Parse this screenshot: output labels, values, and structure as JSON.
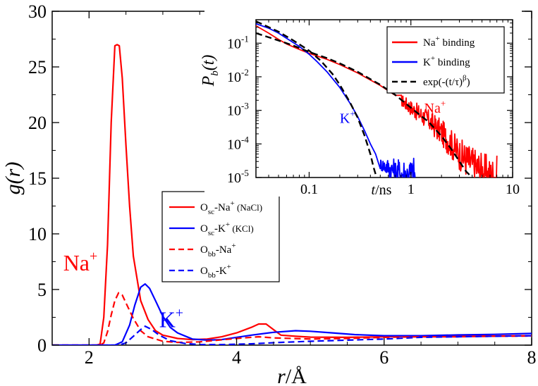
{
  "chart_data": [
    {
      "type": "line",
      "xlabel_italic": "r",
      "xlabel_unit": "/Å",
      "ylabel_italic": "g(r)",
      "xlim": [
        1.5,
        8
      ],
      "ylim": [
        0,
        30
      ],
      "xticks": [
        2,
        4,
        6,
        8
      ],
      "xtick_labels": [
        "2",
        "4",
        "6",
        "8"
      ],
      "yticks": [
        0,
        5,
        10,
        15,
        20,
        25,
        30
      ],
      "ytick_labels": [
        "0",
        "5",
        "10",
        "15",
        "20",
        "25",
        "30"
      ],
      "grid": false,
      "legend_position": "center-right",
      "annotations": [
        {
          "text": "Na",
          "sup": "+",
          "color": "#ff0000",
          "x": 1.65,
          "y": 6.7
        },
        {
          "text": "K",
          "sup": "+",
          "color": "#0000ff",
          "x": 2.95,
          "y": 1.6
        }
      ],
      "series": [
        {
          "name_parts": [
            "O",
            "sc",
            "-Na",
            "+",
            " (NaCl)"
          ],
          "color": "#ff0000",
          "dash": "solid",
          "points": [
            [
              1.5,
              0
            ],
            [
              2.1,
              0
            ],
            [
              2.15,
              0.1
            ],
            [
              2.2,
              2.5
            ],
            [
              2.25,
              9
            ],
            [
              2.3,
              20
            ],
            [
              2.35,
              26.9
            ],
            [
              2.38,
              27
            ],
            [
              2.41,
              26.9
            ],
            [
              2.45,
              24
            ],
            [
              2.5,
              18
            ],
            [
              2.55,
              12.5
            ],
            [
              2.6,
              8
            ],
            [
              2.7,
              4
            ],
            [
              2.8,
              2.3
            ],
            [
              2.9,
              1.3
            ],
            [
              3.0,
              0.9
            ],
            [
              3.2,
              0.6
            ],
            [
              3.4,
              0.5
            ],
            [
              3.6,
              0.55
            ],
            [
              3.8,
              0.75
            ],
            [
              4.0,
              1.1
            ],
            [
              4.2,
              1.6
            ],
            [
              4.3,
              1.9
            ],
            [
              4.4,
              1.9
            ],
            [
              4.5,
              1.4
            ],
            [
              4.6,
              0.9
            ],
            [
              4.8,
              0.8
            ],
            [
              5.0,
              0.72
            ],
            [
              5.5,
              0.7
            ],
            [
              6.0,
              0.75
            ],
            [
              6.5,
              0.82
            ],
            [
              7.0,
              0.8
            ],
            [
              7.5,
              0.82
            ],
            [
              8.0,
              0.85
            ]
          ]
        },
        {
          "name_parts": [
            "O",
            "sc",
            "-K",
            "+",
            " (KCl)"
          ],
          "color": "#0000ff",
          "dash": "solid",
          "points": [
            [
              1.5,
              0
            ],
            [
              2.35,
              0
            ],
            [
              2.45,
              0.3
            ],
            [
              2.55,
              1.8
            ],
            [
              2.62,
              3.6
            ],
            [
              2.7,
              5.2
            ],
            [
              2.76,
              5.5
            ],
            [
              2.82,
              5.1
            ],
            [
              2.9,
              4.0
            ],
            [
              3.0,
              2.6
            ],
            [
              3.1,
              1.6
            ],
            [
              3.2,
              1.1
            ],
            [
              3.4,
              0.55
            ],
            [
              3.6,
              0.45
            ],
            [
              3.8,
              0.5
            ],
            [
              4.0,
              0.7
            ],
            [
              4.2,
              0.9
            ],
            [
              4.5,
              1.15
            ],
            [
              4.8,
              1.3
            ],
            [
              5.0,
              1.25
            ],
            [
              5.3,
              1.1
            ],
            [
              5.6,
              0.95
            ],
            [
              6.0,
              0.85
            ],
            [
              6.5,
              0.85
            ],
            [
              7.0,
              0.92
            ],
            [
              7.5,
              0.97
            ],
            [
              8.0,
              1.05
            ]
          ]
        },
        {
          "name_parts": [
            "O",
            "bb",
            "-Na",
            "+",
            ""
          ],
          "color": "#ff0000",
          "dash": "dashed",
          "points": [
            [
              1.5,
              0
            ],
            [
              2.15,
              0
            ],
            [
              2.2,
              0.2
            ],
            [
              2.25,
              1.2
            ],
            [
              2.3,
              2.7
            ],
            [
              2.35,
              4.0
            ],
            [
              2.4,
              4.7
            ],
            [
              2.45,
              4.5
            ],
            [
              2.5,
              3.8
            ],
            [
              2.6,
              2.4
            ],
            [
              2.7,
              1.3
            ],
            [
              2.8,
              0.75
            ],
            [
              3.0,
              0.35
            ],
            [
              3.2,
              0.25
            ],
            [
              3.5,
              0.3
            ],
            [
              4.0,
              0.6
            ],
            [
              4.3,
              0.75
            ],
            [
              4.5,
              0.65
            ],
            [
              5.0,
              0.55
            ],
            [
              5.5,
              0.6
            ],
            [
              6.0,
              0.7
            ],
            [
              6.5,
              0.75
            ],
            [
              7.0,
              0.75
            ],
            [
              7.5,
              0.8
            ],
            [
              8.0,
              0.82
            ]
          ]
        },
        {
          "name_parts": [
            "O",
            "bb",
            "-K",
            "+",
            ""
          ],
          "color": "#0000ff",
          "dash": "dashed",
          "points": [
            [
              1.5,
              0
            ],
            [
              2.4,
              0
            ],
            [
              2.5,
              0.2
            ],
            [
              2.6,
              0.8
            ],
            [
              2.7,
              1.4
            ],
            [
              2.76,
              1.7
            ],
            [
              2.85,
              1.4
            ],
            [
              2.95,
              0.9
            ],
            [
              3.1,
              0.4
            ],
            [
              3.3,
              0.15
            ],
            [
              3.5,
              0.05
            ],
            [
              3.8,
              0.05
            ],
            [
              4.2,
              0.12
            ],
            [
              4.6,
              0.25
            ],
            [
              5.0,
              0.35
            ],
            [
              5.5,
              0.45
            ],
            [
              6.0,
              0.55
            ],
            [
              6.5,
              0.7
            ],
            [
              7.0,
              0.75
            ],
            [
              7.5,
              0.8
            ],
            [
              8.0,
              0.85
            ]
          ]
        }
      ]
    },
    {
      "type": "line",
      "log_x": true,
      "log_y": true,
      "xlabel_italic": "t",
      "xlabel_unit": "/ns",
      "ylabel_italic": "P",
      "ylabel_sub": "b",
      "ylabel_arg": "(t)",
      "xlim": [
        0.03,
        10
      ],
      "ylim": [
        1e-05,
        0.5
      ],
      "xticks": [
        0.1,
        1,
        10
      ],
      "xtick_labels": [
        "0.1",
        "1",
        "10"
      ],
      "yticks": [
        0.1,
        0.01,
        0.001,
        0.0001,
        1e-05
      ],
      "ytick_exponents": [
        "-1",
        "-2",
        "-3",
        "-4",
        "-5"
      ],
      "ytick_base": "10",
      "grid": false,
      "legend_position": "top-right",
      "annotations": [
        {
          "text": "K",
          "sup": "+",
          "color": "#0000ff",
          "x": 0.2,
          "y": 0.00042
        },
        {
          "text": "Na",
          "sup": "+",
          "color": "#ff0000",
          "x": 1.35,
          "y": 0.00085
        }
      ],
      "series": [
        {
          "name_parts": [
            "Na",
            "+",
            " binding"
          ],
          "color": "#ff0000",
          "dash": "solid",
          "noisy_tail_from": 0.8,
          "points": [
            [
              0.03,
              0.33
            ],
            [
              0.04,
              0.2
            ],
            [
              0.05,
              0.13
            ],
            [
              0.06,
              0.095
            ],
            [
              0.08,
              0.065
            ],
            [
              0.1,
              0.05
            ],
            [
              0.15,
              0.033
            ],
            [
              0.2,
              0.023
            ],
            [
              0.3,
              0.013
            ],
            [
              0.5,
              0.0055
            ],
            [
              0.7,
              0.0028
            ],
            [
              1.0,
              0.0012
            ],
            [
              1.5,
              0.0005
            ],
            [
              2.0,
              0.00022
            ],
            [
              2.5,
              0.0001
            ],
            [
              3.0,
              5e-05
            ],
            [
              4.0,
              2.5e-05
            ],
            [
              5.0,
              1.5e-05
            ],
            [
              6.0,
              1e-05
            ],
            [
              7.0,
              1e-05
            ]
          ]
        },
        {
          "name_parts": [
            "K",
            "+",
            " binding"
          ],
          "color": "#0000ff",
          "dash": "solid",
          "noisy_tail_from": 0.5,
          "points": [
            [
              0.03,
              0.38
            ],
            [
              0.04,
              0.28
            ],
            [
              0.05,
              0.2
            ],
            [
              0.06,
              0.14
            ],
            [
              0.08,
              0.08
            ],
            [
              0.1,
              0.047
            ],
            [
              0.12,
              0.028
            ],
            [
              0.15,
              0.014
            ],
            [
              0.2,
              0.0048
            ],
            [
              0.25,
              0.0017
            ],
            [
              0.3,
              0.00065
            ],
            [
              0.35,
              0.00025
            ],
            [
              0.4,
              0.0001
            ],
            [
              0.45,
              5e-05
            ],
            [
              0.5,
              2.5e-05
            ],
            [
              0.6,
              2e-05
            ],
            [
              0.7,
              1.5e-05
            ],
            [
              0.9,
              1.2e-05
            ],
            [
              1.1,
              1e-05
            ]
          ]
        },
        {
          "name_parts": [
            "exp(-(t/τ)",
            "β",
            ")"
          ],
          "color": "#000000",
          "dash": "dashed",
          "points": [
            [
              0.03,
              0.45
            ],
            [
              0.05,
              0.22
            ],
            [
              0.07,
              0.12
            ],
            [
              0.1,
              0.06
            ],
            [
              0.13,
              0.03
            ],
            [
              0.17,
              0.012
            ],
            [
              0.2,
              0.0058
            ],
            [
              0.25,
              0.0018
            ],
            [
              0.3,
              0.0006
            ],
            [
              0.35,
              0.00018
            ],
            [
              0.4,
              5e-05
            ],
            [
              0.43,
              2e-05
            ],
            [
              0.46,
              1e-05
            ]
          ]
        },
        {
          "name_parts": [
            "",
            "",
            ""
          ],
          "color": "#000000",
          "dash": "dashed",
          "points": [
            [
              0.03,
              0.2
            ],
            [
              0.05,
              0.12
            ],
            [
              0.07,
              0.085
            ],
            [
              0.1,
              0.055
            ],
            [
              0.15,
              0.036
            ],
            [
              0.2,
              0.025
            ],
            [
              0.3,
              0.014
            ],
            [
              0.5,
              0.0058
            ],
            [
              0.7,
              0.0029
            ],
            [
              1.0,
              0.0012
            ],
            [
              1.5,
              0.00045
            ],
            [
              2.0,
              0.00017
            ],
            [
              2.5,
              7e-05
            ],
            [
              3.0,
              3e-05
            ],
            [
              3.5,
              1.5e-05
            ],
            [
              4.0,
              1e-05
            ]
          ]
        }
      ]
    }
  ]
}
